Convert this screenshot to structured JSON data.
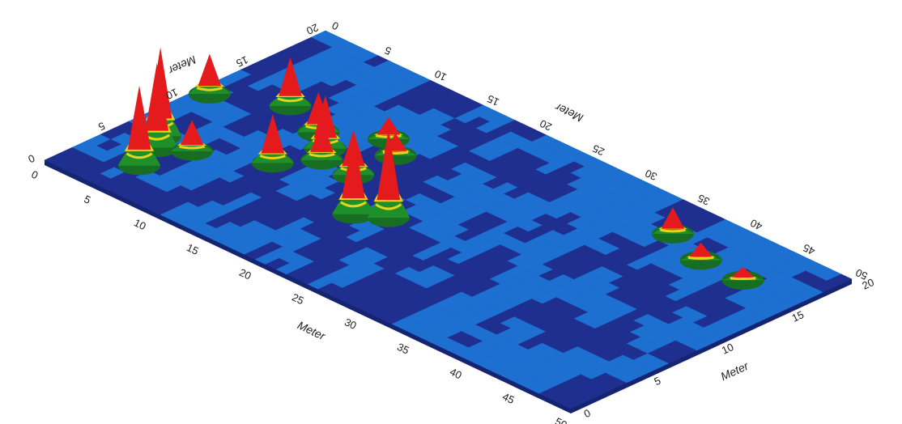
{
  "chart_data": {
    "type": "heatmap",
    "title": "",
    "xlabel": "Meter",
    "ylabel": "Meter",
    "xlim": [
      0,
      50
    ],
    "ylim": [
      0,
      20
    ],
    "x_ticks": [
      "0",
      "5",
      "10",
      "15",
      "20",
      "25",
      "30",
      "35",
      "40",
      "45",
      "50"
    ],
    "y_ticks": [
      "0",
      "5",
      "10",
      "15",
      "20"
    ],
    "colors": {
      "low": "#1f2f8f",
      "base": "#1d6fd0",
      "mid": "#1f8f2a",
      "high": "#e8d21a",
      "peak": "#e41a1c"
    },
    "peaks": [
      {
        "x": 5,
        "y": 3,
        "height": 0.9
      },
      {
        "x": 4,
        "y": 5,
        "height": 0.95
      },
      {
        "x": 3,
        "y": 6,
        "height": 1.0
      },
      {
        "x": 6,
        "y": 6,
        "height": 0.35
      },
      {
        "x": 1,
        "y": 11,
        "height": 0.45
      },
      {
        "x": 6,
        "y": 13,
        "height": 0.55
      },
      {
        "x": 10,
        "y": 12,
        "height": 0.45
      },
      {
        "x": 12,
        "y": 11,
        "height": 0.6
      },
      {
        "x": 13,
        "y": 10,
        "height": 0.45
      },
      {
        "x": 11,
        "y": 8,
        "height": 0.55
      },
      {
        "x": 16,
        "y": 10,
        "height": 0.5
      },
      {
        "x": 16,
        "y": 13,
        "height": 0.25
      },
      {
        "x": 14,
        "y": 14,
        "height": 0.25
      },
      {
        "x": 20,
        "y": 7,
        "height": 0.9
      },
      {
        "x": 22,
        "y": 8,
        "height": 1.0
      },
      {
        "x": 37,
        "y": 17,
        "height": 0.3
      },
      {
        "x": 41,
        "y": 16,
        "height": 0.2
      },
      {
        "x": 45,
        "y": 16,
        "height": 0.15
      }
    ]
  }
}
